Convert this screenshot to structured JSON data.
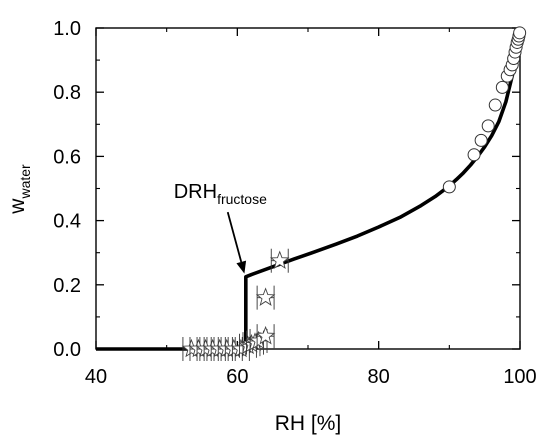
{
  "chart_data": {
    "type": "scatter",
    "title": "",
    "xlabel": "RH [%]",
    "ylabel": {
      "main": "w",
      "sub": "water"
    },
    "xlim": [
      40,
      100
    ],
    "ylim": [
      0.0,
      1.0
    ],
    "xticks": [
      40,
      60,
      80,
      100
    ],
    "yticks": [
      0.0,
      0.2,
      0.4,
      0.6,
      0.8,
      1.0
    ],
    "xtick_labels": [
      "40",
      "60",
      "80",
      "100"
    ],
    "ytick_labels": [
      "0.0",
      "0.2",
      "0.4",
      "0.6",
      "0.8",
      "1.0"
    ],
    "grid": false,
    "legend": null,
    "series": [
      {
        "type": "line",
        "color": "#000000",
        "x": [
          40,
          61.2,
          61.2,
          62,
          65,
          68,
          71,
          74,
          77,
          80,
          83,
          86,
          88,
          90,
          91,
          92,
          93,
          94,
          95,
          96,
          97,
          98,
          99,
          100
        ],
        "y": [
          0.0,
          0.0,
          0.225,
          0.232,
          0.256,
          0.28,
          0.303,
          0.327,
          0.352,
          0.38,
          0.41,
          0.447,
          0.475,
          0.508,
          0.528,
          0.549,
          0.573,
          0.6,
          0.63,
          0.665,
          0.708,
          0.77,
          0.86,
          0.99
        ]
      },
      {
        "type": "scatter",
        "marker": "circle",
        "x": [
          90.0,
          93.5,
          94.5,
          95.5,
          96.5,
          97.5,
          98.2,
          98.6,
          98.9,
          99.1,
          99.3,
          99.45,
          99.6,
          99.75,
          99.85,
          99.95
        ],
        "y": [
          0.505,
          0.605,
          0.65,
          0.695,
          0.76,
          0.815,
          0.85,
          0.87,
          0.885,
          0.905,
          0.925,
          0.94,
          0.955,
          0.965,
          0.975,
          0.985
        ]
      },
      {
        "type": "scatter",
        "marker": "star",
        "error_bars": "x",
        "x": [
          53.5,
          54.5,
          55.5,
          56.5,
          57.5,
          58.5,
          59.5,
          60.5,
          61.5,
          62.0,
          62.5,
          63.0,
          64.0,
          64.0,
          66.0
        ],
        "y": [
          0.0,
          0.0,
          0.0,
          0.0,
          0.0,
          0.0,
          0.0,
          0.0,
          0.01,
          0.015,
          0.02,
          0.025,
          0.04,
          0.16,
          0.275
        ],
        "xerr": [
          1.2,
          1.2,
          1.2,
          1.2,
          1.2,
          1.2,
          1.2,
          1.2,
          1.2,
          1.2,
          1.2,
          1.2,
          1.2,
          1.2,
          1.2
        ]
      }
    ],
    "annotations": [
      {
        "text": "DRH",
        "sub": "fructose",
        "x_at": 51,
        "y_at": 0.47,
        "arrow_to": [
          61.0,
          0.235
        ]
      }
    ]
  }
}
